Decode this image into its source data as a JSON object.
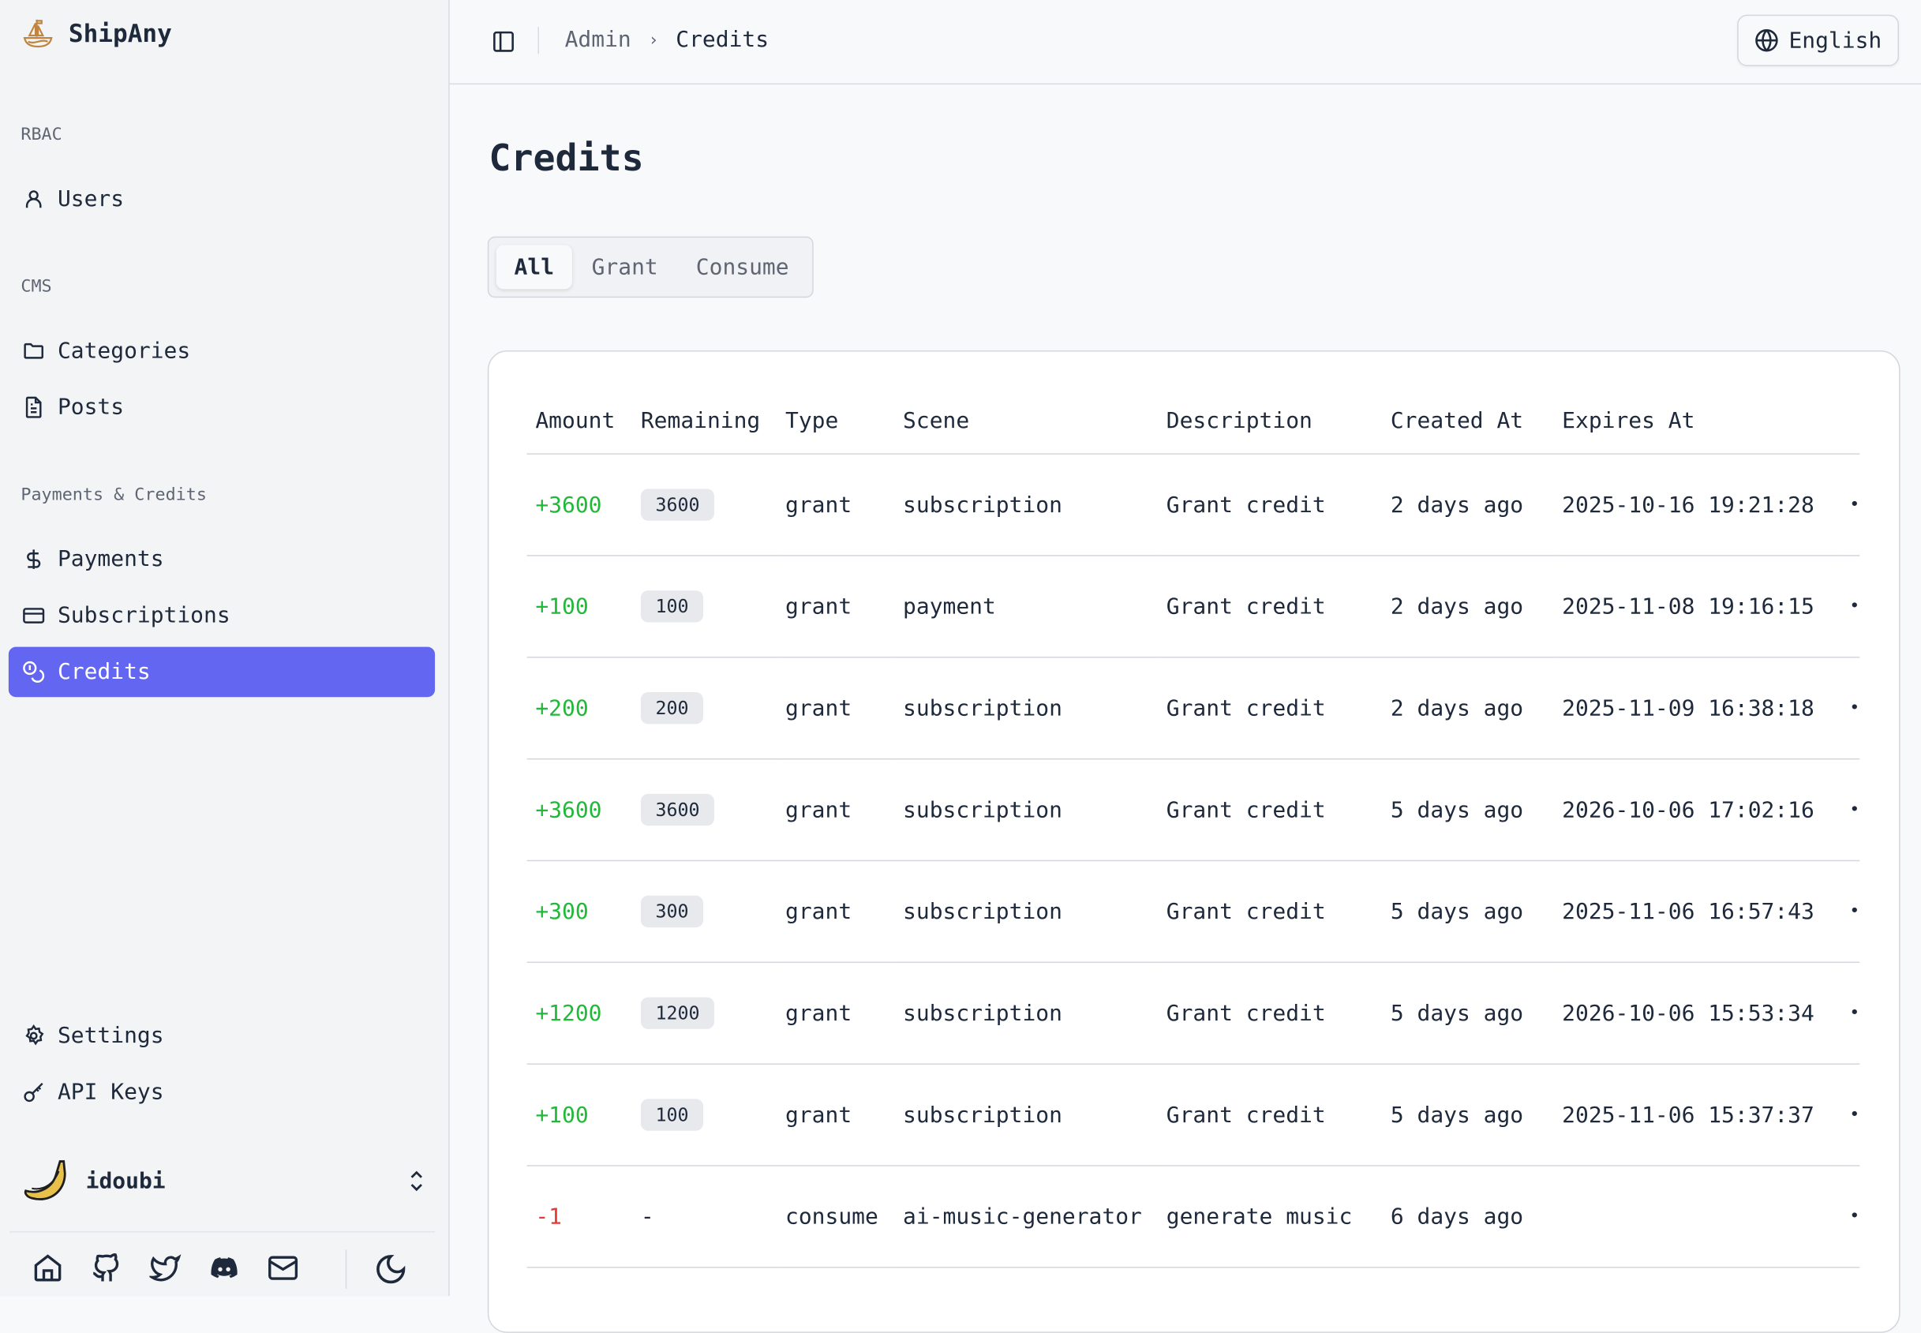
{
  "brand": {
    "name": "ShipAny",
    "logo": "sailboat-icon"
  },
  "sidebar": {
    "groups": [
      {
        "label": "RBAC"
      },
      {
        "label": "CMS"
      },
      {
        "label": "Payments & Credits"
      }
    ],
    "items": [
      {
        "label": "Users",
        "icon": "user-icon"
      },
      {
        "label": "Categories",
        "icon": "folder-icon"
      },
      {
        "label": "Posts",
        "icon": "file-text-icon"
      },
      {
        "label": "Payments",
        "icon": "dollar-icon"
      },
      {
        "label": "Subscriptions",
        "icon": "credit-card-icon"
      },
      {
        "label": "Credits",
        "icon": "coins-icon",
        "active": true
      },
      {
        "label": "Settings",
        "icon": "gear-icon"
      },
      {
        "label": "API Keys",
        "icon": "key-icon"
      }
    ],
    "user": {
      "name": "idoubi",
      "avatar": "banana"
    },
    "footer_icons": [
      "home-icon",
      "github-icon",
      "twitter-icon",
      "discord-icon",
      "mail-icon",
      "moon-icon"
    ]
  },
  "header": {
    "breadcrumb": [
      "Admin",
      "Credits"
    ],
    "language": "English"
  },
  "page": {
    "title": "Credits",
    "tabs": [
      "All",
      "Grant",
      "Consume"
    ],
    "active_tab": "All"
  },
  "colors": {
    "accent": "#6366f1",
    "positive": "#22b83a",
    "negative": "#e53935"
  },
  "table": {
    "columns": [
      "Amount",
      "Remaining",
      "Type",
      "Scene",
      "Description",
      "Created At",
      "Expires At"
    ],
    "rows": [
      {
        "amount": "+3600",
        "remaining": "3600",
        "type": "grant",
        "scene": "subscription",
        "description": "Grant credit",
        "created": "2 days ago",
        "expires": "2025-10-16 19:21:28"
      },
      {
        "amount": "+100",
        "remaining": "100",
        "type": "grant",
        "scene": "payment",
        "description": "Grant credit",
        "created": "2 days ago",
        "expires": "2025-11-08 19:16:15"
      },
      {
        "amount": "+200",
        "remaining": "200",
        "type": "grant",
        "scene": "subscription",
        "description": "Grant credit",
        "created": "2 days ago",
        "expires": "2025-11-09 16:38:18"
      },
      {
        "amount": "+3600",
        "remaining": "3600",
        "type": "grant",
        "scene": "subscription",
        "description": "Grant credit",
        "created": "5 days ago",
        "expires": "2026-10-06 17:02:16"
      },
      {
        "amount": "+300",
        "remaining": "300",
        "type": "grant",
        "scene": "subscription",
        "description": "Grant credit",
        "created": "5 days ago",
        "expires": "2025-11-06 16:57:43"
      },
      {
        "amount": "+1200",
        "remaining": "1200",
        "type": "grant",
        "scene": "subscription",
        "description": "Grant credit",
        "created": "5 days ago",
        "expires": "2026-10-06 15:53:34"
      },
      {
        "amount": "+100",
        "remaining": "100",
        "type": "grant",
        "scene": "subscription",
        "description": "Grant credit",
        "created": "5 days ago",
        "expires": "2025-11-06 15:37:37"
      },
      {
        "amount": "-1",
        "remaining": "-",
        "type": "consume",
        "scene": "ai-music-generator",
        "description": "generate music",
        "created": "6 days ago",
        "expires": ""
      }
    ]
  }
}
